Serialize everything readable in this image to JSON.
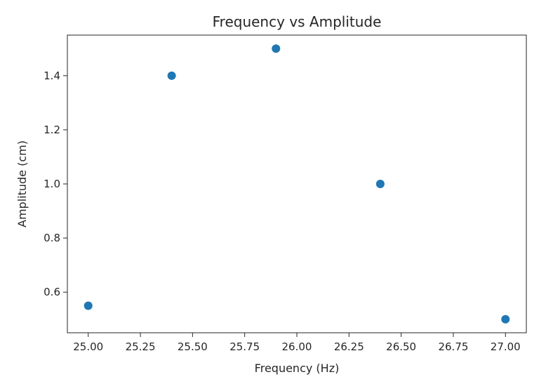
{
  "chart_data": {
    "type": "scatter",
    "title": "Frequency vs Amplitude",
    "xlabel": "Frequency (Hz)",
    "ylabel": "Amplitude (cm)",
    "xlim": [
      24.9,
      27.1
    ],
    "ylim": [
      0.45,
      1.55
    ],
    "xticks": [
      25.0,
      25.25,
      25.5,
      25.75,
      26.0,
      26.25,
      26.5,
      26.75,
      27.0
    ],
    "xtick_labels": [
      "25.00",
      "25.25",
      "25.50",
      "25.75",
      "26.00",
      "26.25",
      "26.50",
      "26.75",
      "27.00"
    ],
    "yticks": [
      0.6,
      0.8,
      1.0,
      1.2,
      1.4
    ],
    "ytick_labels": [
      "0.6",
      "0.8",
      "1.0",
      "1.2",
      "1.4"
    ],
    "grid": false,
    "series": [
      {
        "color": "#1f77b4",
        "points": [
          {
            "x": 25.0,
            "y": 0.55
          },
          {
            "x": 25.4,
            "y": 1.4
          },
          {
            "x": 25.9,
            "y": 1.5
          },
          {
            "x": 26.4,
            "y": 1.0
          },
          {
            "x": 27.0,
            "y": 0.5
          }
        ]
      }
    ]
  }
}
